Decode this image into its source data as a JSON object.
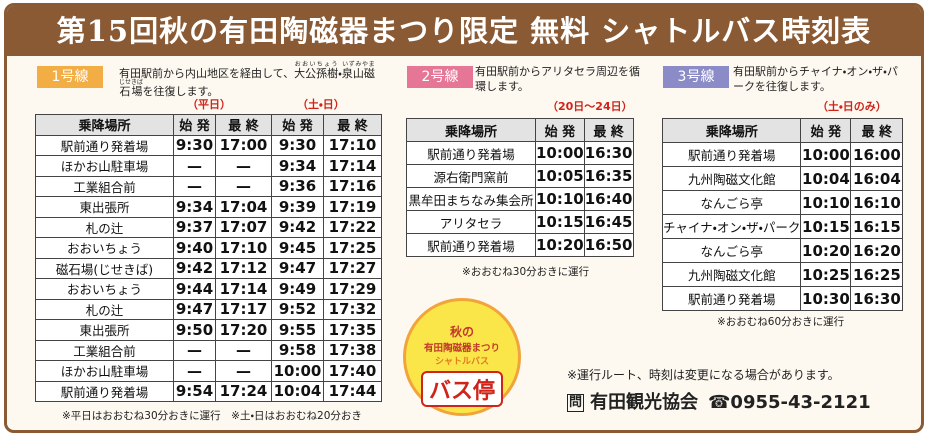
{
  "header": {
    "title": "第15回秋の有田陶磁器まつり限定 無料 シャトルバス時刻表"
  },
  "routes": [
    {
      "badge": "1号線",
      "color": "#f3ad45",
      "description": [
        {
          "text": "有田駅前から内山地区を経由して、"
        },
        {
          "text": "大公孫樹",
          "ruby": "おおいちょう"
        },
        {
          "text": "・"
        },
        {
          "text": "泉山磁石場",
          "ruby": "いずみやま じせきば"
        },
        {
          "text": "を往復します。"
        }
      ],
      "periods": [
        "（平日）",
        "（土・日）"
      ],
      "table": {
        "header": [
          "乗降場所",
          "始 発",
          "最 終",
          "始 発",
          "最 終"
        ],
        "rows": [
          [
            "駅前通り発着場",
            "9:30",
            "17:00",
            "9:30",
            "17:10"
          ],
          [
            "ほかお山駐車場",
            "—",
            "—",
            "9:34",
            "17:14"
          ],
          [
            "工業組合前",
            "—",
            "—",
            "9:36",
            "17:16"
          ],
          [
            "東出張所",
            "9:34",
            "17:04",
            "9:39",
            "17:19"
          ],
          [
            "札の辻",
            "9:37",
            "17:07",
            "9:42",
            "17:22"
          ],
          [
            "おおいちょう",
            "9:40",
            "17:10",
            "9:45",
            "17:25"
          ],
          [
            "磁石場(じせきば)",
            "9:42",
            "17:12",
            "9:47",
            "17:27"
          ],
          [
            "おおいちょう",
            "9:44",
            "17:14",
            "9:49",
            "17:29"
          ],
          [
            "札の辻",
            "9:47",
            "17:17",
            "9:52",
            "17:32"
          ],
          [
            "東出張所",
            "9:50",
            "17:20",
            "9:55",
            "17:35"
          ],
          [
            "工業組合前",
            "—",
            "—",
            "9:58",
            "17:38"
          ],
          [
            "ほかお山駐車場",
            "—",
            "—",
            "10:00",
            "17:40"
          ],
          [
            "駅前通り発着場",
            "9:54",
            "17:24",
            "10:04",
            "17:44"
          ]
        ]
      },
      "note": "※平日はおおむね30分おきに運行　※土・日はおおむね20分おき"
    },
    {
      "badge": "2号線",
      "color": "#e57696",
      "description": [
        {
          "text": "有田駅前からアリタセラ周辺を循環します。"
        }
      ],
      "periods": [
        "（20日〜24日）"
      ],
      "table": {
        "header": [
          "乗降場所",
          "始 発",
          "最 終"
        ],
        "rows": [
          [
            "駅前通り発着場",
            "10:00",
            "16:30"
          ],
          [
            "源右衛門窯前",
            "10:05",
            "16:35"
          ],
          [
            "黒牟田まちなみ集会所",
            "10:10",
            "16:40"
          ],
          [
            "アリタセラ",
            "10:15",
            "16:45"
          ],
          [
            "駅前通り発着場",
            "10:20",
            "16:50"
          ]
        ]
      },
      "note": "※おおむね30分おきに運行"
    },
    {
      "badge": "3号線",
      "color": "#8b8cc7",
      "description": [
        {
          "text": "有田駅前からチャイナ・オン・ザ・パークを往復します。"
        }
      ],
      "periods": [
        "（土・日のみ）"
      ],
      "table": {
        "header": [
          "乗降場所",
          "始 発",
          "最 終"
        ],
        "rows": [
          [
            "駅前通り発着場",
            "10:00",
            "16:00"
          ],
          [
            "九州陶磁文化館",
            "10:04",
            "16:04"
          ],
          [
            "なんごら亭",
            "10:10",
            "16:10"
          ],
          [
            "チャイナ・オン・ザ・パーク",
            "10:15",
            "16:15"
          ],
          [
            "なんごら亭",
            "10:20",
            "16:20"
          ],
          [
            "九州陶磁文化館",
            "10:25",
            "16:25"
          ],
          [
            "駅前通り発着場",
            "10:30",
            "16:30"
          ]
        ]
      },
      "note": "※おおむね60分おきに運行"
    }
  ],
  "bus_stop": {
    "top": "秋の",
    "event": "有田陶磁器まつり",
    "sub": "シャトルバス",
    "main": "バス停"
  },
  "footer": {
    "notice": "※運行ルート、時刻は変更になる場合があります。",
    "contact_icon": "問",
    "contact": "有田観光協会",
    "phone": "☎0955-43-2121"
  }
}
